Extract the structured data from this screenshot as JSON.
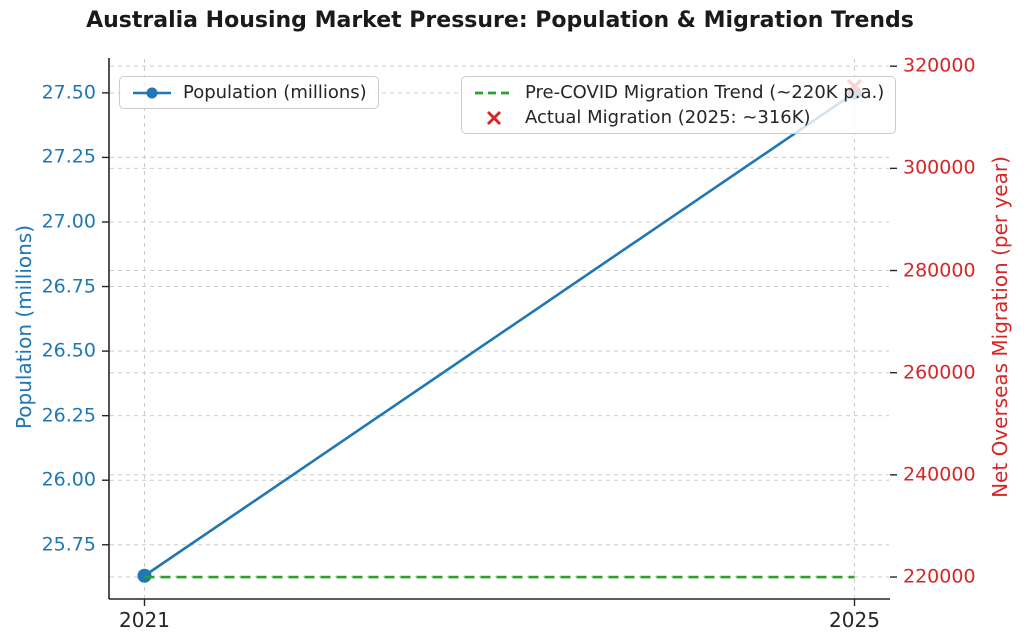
{
  "title": "Australia Housing Market Pressure: Population & Migration Trends",
  "colors": {
    "population_blue": "#1f77b4",
    "trend_green": "#2ca02c",
    "migration_red": "#d62728",
    "grid_gray": "#cccccc",
    "spine_black": "#262626",
    "title_text": "#1a1a1a"
  },
  "chart_data": {
    "type": "line",
    "title": "Australia Housing Market Pressure: Population & Migration Trends",
    "grid": true,
    "x_axis": {
      "range": [
        2020.8,
        2025.2
      ],
      "tick_values": [
        2021,
        2025
      ],
      "tick_labels": [
        "2021",
        "2025"
      ]
    },
    "left_axis": {
      "label": "Population (millions)",
      "color": "#1f77b4",
      "range": [
        25.54,
        27.635
      ],
      "tick_values": [
        27.5,
        27.25,
        27.0,
        26.75,
        26.5,
        26.25,
        26.0,
        25.75
      ],
      "tick_labels": [
        "27.50",
        "27.25",
        "27.00",
        "26.75",
        "26.50",
        "26.25",
        "26.00",
        "25.75"
      ]
    },
    "right_axis": {
      "label": "Net Overseas Migration (per year)",
      "color": "#d62728",
      "range": [
        215700,
        321600
      ],
      "tick_values": [
        320000,
        300000,
        280000,
        260000,
        240000,
        220000
      ],
      "tick_labels": [
        "320000",
        "300000",
        "280000",
        "260000",
        "240000",
        "220000"
      ]
    },
    "series": [
      {
        "name": "Population (millions)",
        "axis": "left",
        "style": "solid",
        "marker": "circle",
        "color": "#1f77b4",
        "x": [
          2021,
          2025
        ],
        "values": [
          25.63,
          27.5
        ]
      },
      {
        "name": "Pre-COVID Migration Trend (~220K p.a.)",
        "axis": "right",
        "style": "dashed",
        "marker": "none",
        "color": "#2ca02c",
        "x": [
          2021,
          2025
        ],
        "values": [
          220000,
          220000
        ]
      },
      {
        "name": "Actual Migration (2025: ~316K)",
        "axis": "right",
        "style": "none",
        "marker": "x",
        "color": "#d62728",
        "x": [
          2025
        ],
        "values": [
          316000
        ]
      }
    ],
    "legend_positions": [
      "upper left",
      "upper right"
    ]
  }
}
